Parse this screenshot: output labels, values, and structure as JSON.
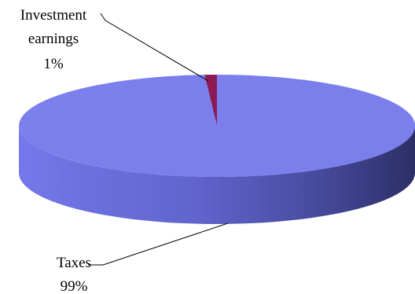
{
  "chart_data": {
    "type": "pie",
    "style": "3d",
    "title": "",
    "labels": [
      "Investment earnings",
      "Taxes"
    ],
    "values": [
      1,
      99
    ],
    "unit": "%",
    "colors": {
      "Investment earnings": "#8b1a55",
      "Taxes": "#7b7fec"
    },
    "label_text": {
      "investment": [
        "Investment",
        "earnings",
        "1%"
      ],
      "taxes": [
        "Taxes",
        "99%"
      ]
    },
    "legend": "none",
    "grid": false
  }
}
